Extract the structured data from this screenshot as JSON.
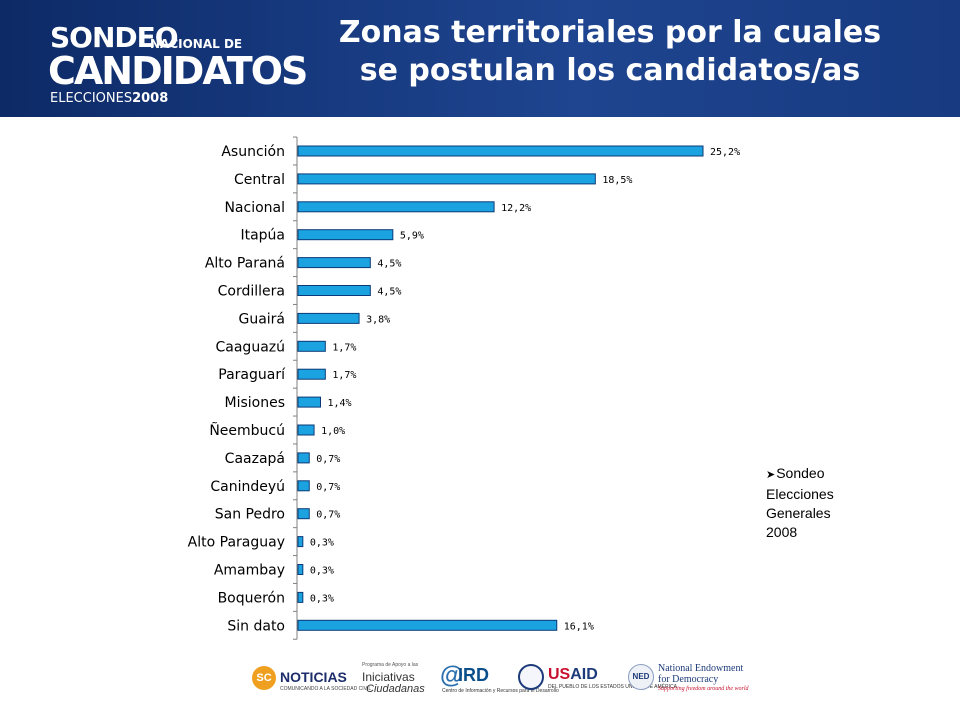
{
  "header": {
    "title_line1": "Zonas territoriales por la cuales",
    "title_line2": "se postulan los candidatos/as",
    "logo": {
      "line1": "SONDEO",
      "line1_suffix": "NACIONAL DE",
      "line2": "CANDIDATOS",
      "line3": "ELECCIONES",
      "line3_year": "2008"
    }
  },
  "note": {
    "bullet_icon": "arrow-right-icon",
    "lines": [
      "Sondeo",
      "Elecciones",
      "Generales",
      "2008"
    ]
  },
  "chart_data": {
    "type": "bar",
    "orientation": "horizontal",
    "categories": [
      "Asunción",
      "Central",
      "Nacional",
      "Itapúa",
      "Alto Paraná",
      "Cordillera",
      "Guairá",
      "Caaguazú",
      "Paraguarí",
      "Misiones",
      "Ñeembucú",
      "Caazapá",
      "Canindeyú",
      "San Pedro",
      "Alto Paraguay",
      "Amambay",
      "Boquerón",
      "Sin dato"
    ],
    "values": [
      25.2,
      18.5,
      12.2,
      5.9,
      4.5,
      4.5,
      3.8,
      1.7,
      1.7,
      1.4,
      1.0,
      0.7,
      0.7,
      0.7,
      0.3,
      0.3,
      0.3,
      16.1
    ],
    "labels": [
      "25,2%",
      "18,5%",
      "12,2%",
      "5,9%",
      "4,5%",
      "4,5%",
      "3,8%",
      "1,7%",
      "1,7%",
      "1,4%",
      "1,0%",
      "0,7%",
      "0,7%",
      "0,7%",
      "0,3%",
      "0,3%",
      "0,3%",
      "16,1%"
    ],
    "title": "",
    "xlabel": "",
    "ylabel": "",
    "xlim": [
      0,
      25.2
    ],
    "grid": false,
    "legend": false,
    "bar_color": "#1aa3e0",
    "bar_border": "#0c3a78"
  },
  "footer": {
    "sponsors": [
      {
        "icon": "sc-noticias-logo-icon",
        "mark": "SC",
        "name": "NOTICIAS",
        "sub": "COMUNICANDO A LA SOCIEDAD CIVIL"
      },
      {
        "icon": "iniciativas-ciudadanas-logo-icon",
        "sub": "Programa de Apoyo a las",
        "name": "Iniciativas",
        "name2": "Ciudadanas"
      },
      {
        "icon": "ird-logo-icon",
        "mark": "@",
        "name": "IRD",
        "sub": "Centro de Información y Recursos para el Desarrollo"
      },
      {
        "icon": "usaid-logo-icon",
        "name_accent": "US",
        "name": "AID",
        "sub": "DEL PUEBLO DE LOS ESTADOS UNIDOS DE AMÉRICA"
      },
      {
        "icon": "ned-logo-icon",
        "mark": "NED",
        "name": "National Endowment",
        "name2": "for Democracy",
        "sub": "Supporting freedom around the world"
      }
    ]
  }
}
